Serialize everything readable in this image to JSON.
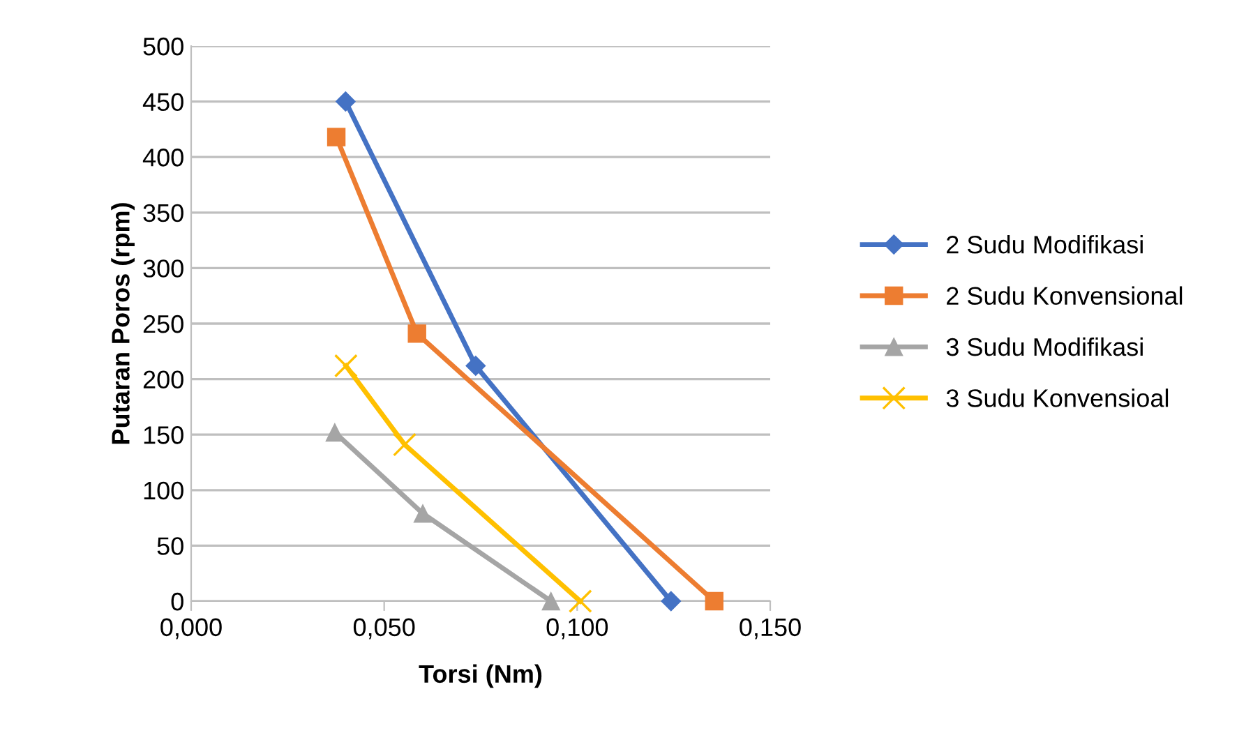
{
  "chart_data": {
    "type": "line",
    "xlabel": "Torsi (Nm)",
    "ylabel": "Putaran Poros (rpm)",
    "xlim": [
      0,
      0.15
    ],
    "xticks": [
      {
        "value": 0,
        "label": "0,000"
      },
      {
        "value": 0.05,
        "label": "0,050"
      },
      {
        "value": 0.1,
        "label": "0,100"
      },
      {
        "value": 0.15,
        "label": "0,150"
      }
    ],
    "ylim": [
      0,
      500
    ],
    "yticks": [
      0,
      50,
      100,
      150,
      200,
      250,
      300,
      350,
      400,
      450,
      500
    ],
    "grid": "y",
    "legend": "right",
    "line_style": "solid",
    "series": [
      {
        "name": "2 Sudu Modifikasi",
        "color": "#4472c4",
        "marker": "diamond",
        "x": [
          0.04,
          0.0737,
          0.1243
        ],
        "values": [
          450,
          212,
          0
        ]
      },
      {
        "name": "2 Sudu Konvensional",
        "color": "#ed7d31",
        "marker": "square",
        "x": [
          0.0376,
          0.0585,
          0.1355
        ],
        "values": [
          418,
          241,
          0
        ]
      },
      {
        "name": "3 Sudu Modifikasi",
        "color": "#a5a5a5",
        "marker": "triangle",
        "x": [
          0.0372,
          0.06,
          0.0932
        ],
        "values": [
          152,
          79,
          0
        ]
      },
      {
        "name": "3 Sudu Konvensioal",
        "color": "#ffc000",
        "marker": "cross",
        "x": [
          0.0401,
          0.0553,
          0.1008
        ],
        "values": [
          212,
          141,
          0
        ]
      }
    ]
  }
}
